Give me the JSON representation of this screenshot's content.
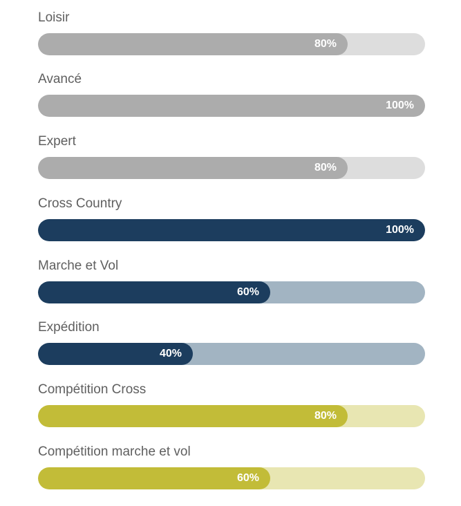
{
  "skills": [
    {
      "label": "Loisir",
      "percent_text": "80%",
      "level": 0.8,
      "theme": "grey"
    },
    {
      "label": "Avancé",
      "percent_text": "100%",
      "level": 1.0,
      "theme": "grey"
    },
    {
      "label": "Expert",
      "percent_text": "80%",
      "level": 0.8,
      "theme": "grey"
    },
    {
      "label": "Cross Country",
      "percent_text": "100%",
      "level": 1.0,
      "theme": "navy"
    },
    {
      "label": "Marche et Vol",
      "percent_text": "60%",
      "level": 0.6,
      "theme": "navy"
    },
    {
      "label": "Expédition",
      "percent_text": "40%",
      "level": 0.4,
      "theme": "navy"
    },
    {
      "label": "Compétition Cross",
      "percent_text": "80%",
      "level": 0.8,
      "theme": "olive"
    },
    {
      "label": "Compétition marche et vol",
      "percent_text": "60%",
      "level": 0.6,
      "theme": "olive"
    }
  ],
  "colors": {
    "grey_fill": "#acacac",
    "grey_track": "#dddddd",
    "navy_fill": "#1c3d5e",
    "navy_track": "#a2b4c2",
    "olive_fill": "#c2bc38",
    "olive_track": "#e8e6b2",
    "label_text": "#5f5f5f",
    "percent_text": "#ffffff"
  }
}
